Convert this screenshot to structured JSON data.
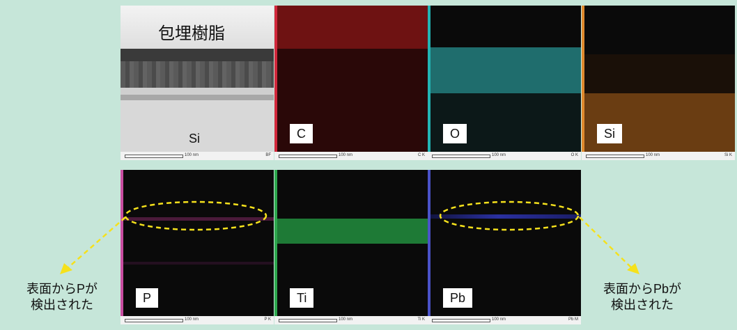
{
  "panels": [
    {
      "id": "bf",
      "label": "Si",
      "title": "包埋樹脂",
      "scale_text": "100 nm",
      "code": "BF"
    },
    {
      "id": "c",
      "label": "C",
      "scale_text": "100 nm",
      "code": "C K",
      "edge_color": "#d2283c"
    },
    {
      "id": "o",
      "label": "O",
      "scale_text": "100 nm",
      "code": "O K",
      "edge_color": "#22b4b4"
    },
    {
      "id": "si",
      "label": "Si",
      "scale_text": "100 nm",
      "code": "Si K",
      "edge_color": "#e08a2e"
    },
    {
      "id": "p",
      "label": "P",
      "scale_text": "100 nm",
      "code": "P K",
      "edge_color": "#c84da0"
    },
    {
      "id": "ti",
      "label": "Ti",
      "scale_text": "100 nm",
      "code": "Ti K",
      "edge_color": "#2ea84e"
    },
    {
      "id": "pb",
      "label": "Pb",
      "scale_text": "100 nm",
      "code": "Pb M",
      "edge_color": "#4a52c8"
    }
  ],
  "annotations": {
    "left": [
      "表面からPが",
      "検出された"
    ],
    "right": [
      "表面からPbが",
      "検出された"
    ],
    "highlight_color": "#f5e11c"
  }
}
